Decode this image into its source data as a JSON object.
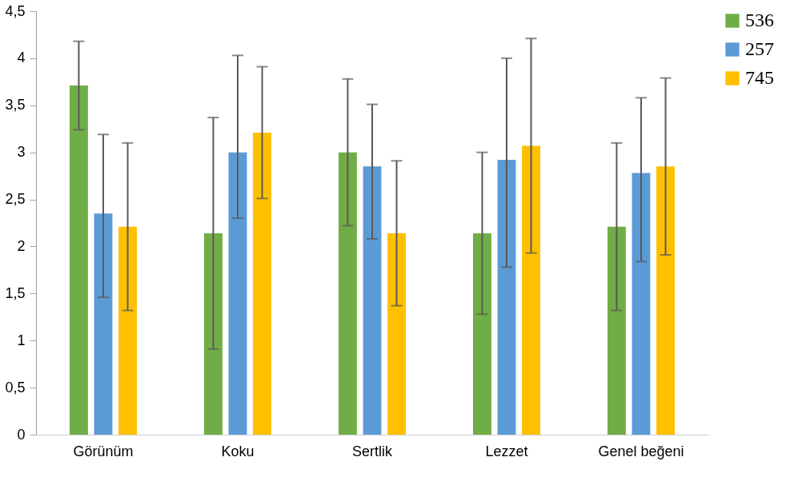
{
  "chart_data": {
    "type": "bar",
    "categories": [
      "Görünüm",
      "Koku",
      "Sertlik",
      "Lezzet",
      "Genel beğeni"
    ],
    "series": [
      {
        "name": "536",
        "color": "#70ad47",
        "values": [
          3.71,
          2.14,
          3.0,
          2.14,
          2.21
        ],
        "errors": [
          [
            3.24,
            4.18
          ],
          [
            0.91,
            3.37
          ],
          [
            2.22,
            3.78
          ],
          [
            1.28,
            3.0
          ],
          [
            1.32,
            3.1
          ]
        ]
      },
      {
        "name": "257",
        "color": "#5b9bd5",
        "values": [
          2.35,
          3.0,
          2.85,
          2.92,
          2.78
        ],
        "errors": [
          [
            1.46,
            3.19
          ],
          [
            2.3,
            4.03
          ],
          [
            2.08,
            3.51
          ],
          [
            1.78,
            4.0
          ],
          [
            1.84,
            3.58
          ]
        ]
      },
      {
        "name": "745",
        "color": "#ffc000",
        "values": [
          2.21,
          3.21,
          2.14,
          3.07,
          2.85
        ],
        "errors": [
          [
            1.32,
            3.1
          ],
          [
            2.51,
            3.91
          ],
          [
            1.37,
            2.91
          ],
          [
            1.93,
            4.21
          ],
          [
            1.91,
            3.79
          ]
        ]
      }
    ],
    "ylim": [
      0,
      4.5
    ],
    "yticks": [
      0,
      {
        "value": 0.5,
        "label": "0,5"
      },
      1,
      {
        "value": 1.5,
        "label": "1,5"
      },
      2,
      {
        "value": 2.5,
        "label": "2,5"
      },
      3,
      {
        "value": 3.5,
        "label": "3,5"
      },
      4,
      {
        "value": 4.5,
        "label": "4,5"
      }
    ],
    "grid": false,
    "legend": "right"
  }
}
